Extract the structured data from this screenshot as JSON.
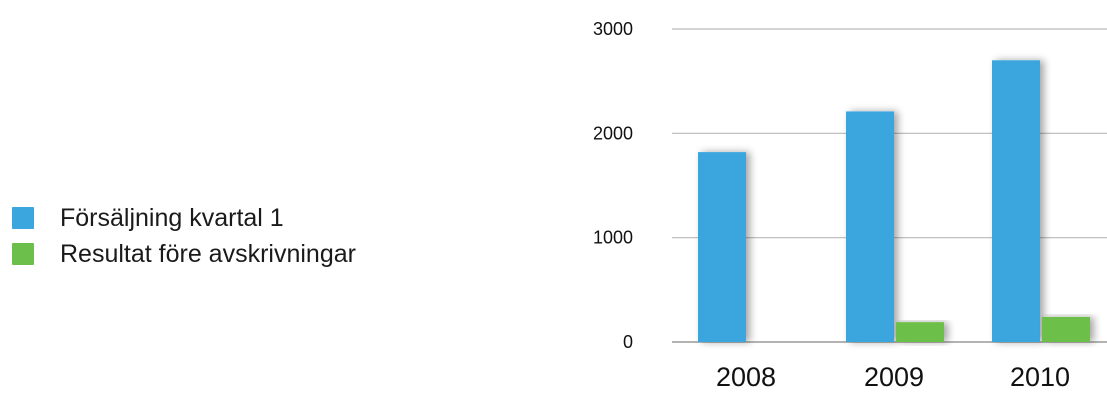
{
  "chart_data": {
    "type": "bar",
    "categories": [
      "2008",
      "2009",
      "2010"
    ],
    "series": [
      {
        "name": "Försäljning kvartal 1",
        "values": [
          1820,
          2210,
          2700
        ],
        "color": "#3aa6dd"
      },
      {
        "name": "Resultat före avskrivningar",
        "values": [
          0,
          190,
          240
        ],
        "color": "#6cbf4a"
      }
    ],
    "yticks": [
      "0",
      "1000",
      "2000",
      "3000"
    ],
    "ylim": [
      0,
      3000
    ],
    "grid": true,
    "legend_position": "left"
  }
}
